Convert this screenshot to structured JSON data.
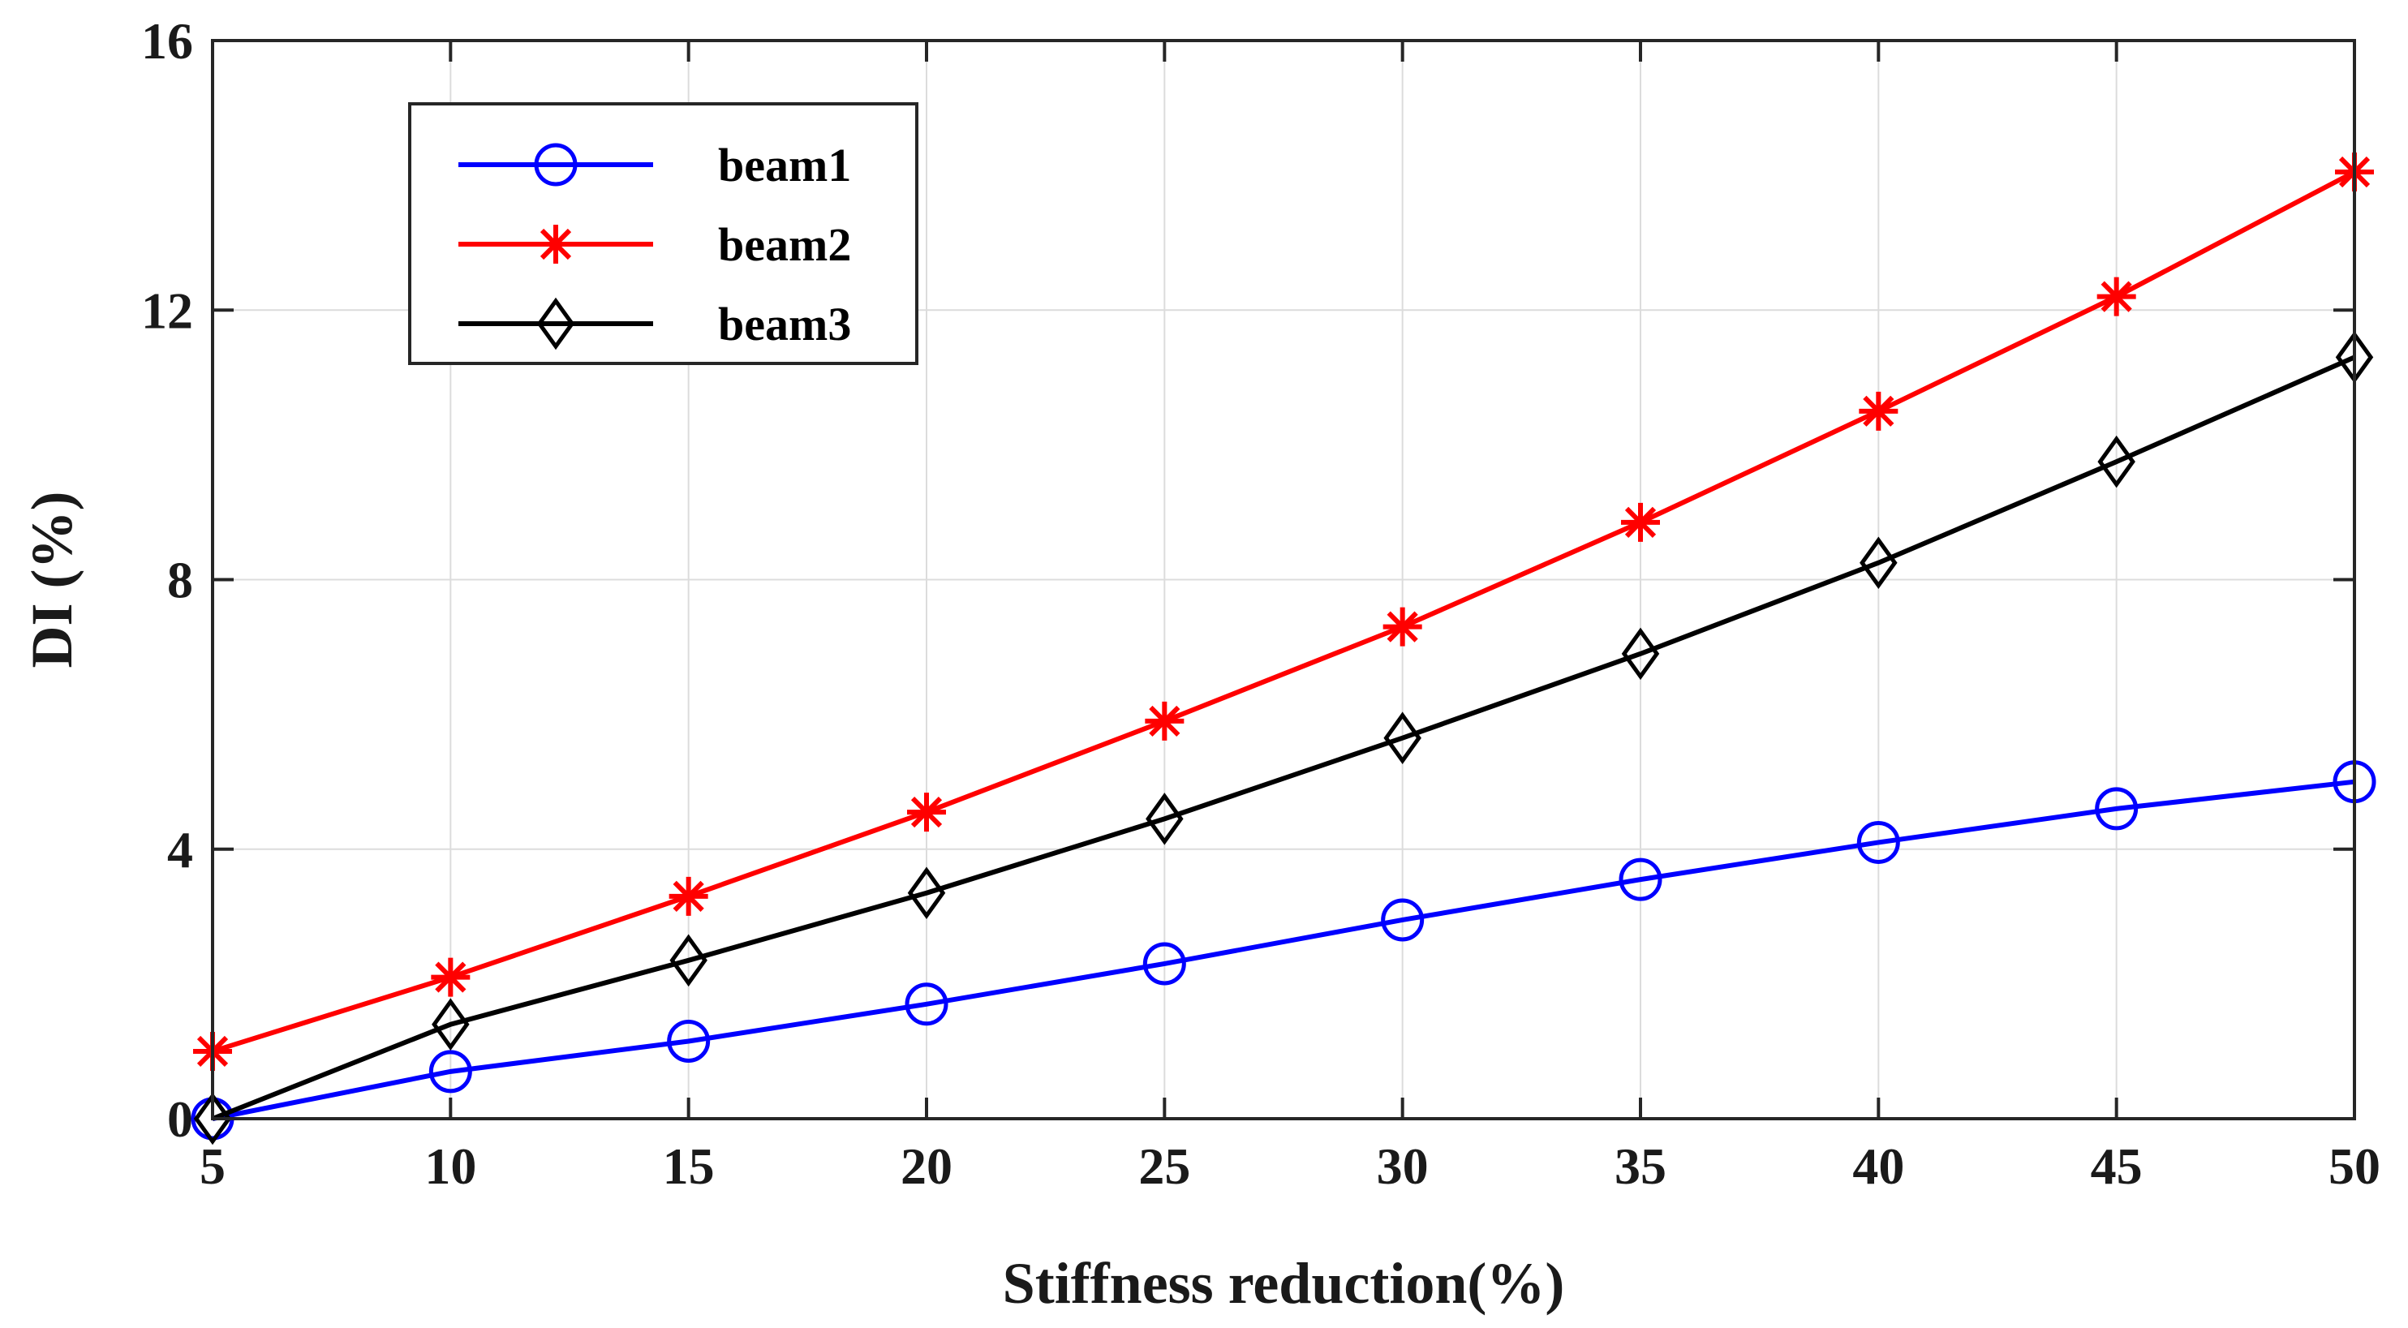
{
  "chart_data": {
    "type": "line",
    "title": "",
    "xlabel": "Stiffness reduction(%)",
    "ylabel": "DI (%)",
    "x": [
      5,
      10,
      15,
      20,
      25,
      30,
      35,
      40,
      45,
      50
    ],
    "xlim": [
      5,
      50
    ],
    "ylim": [
      0,
      16
    ],
    "xticks": [
      "5",
      "10",
      "15",
      "20",
      "25",
      "30",
      "35",
      "40",
      "45",
      "50"
    ],
    "yticks": [
      "0",
      "4",
      "8",
      "12",
      "16"
    ],
    "grid": true,
    "legend_position": "top-left",
    "series": [
      {
        "name": "beam1",
        "color": "#0000ff",
        "marker": "circle",
        "values": [
          0.0,
          0.7,
          1.15,
          1.7,
          2.3,
          2.95,
          3.55,
          4.1,
          4.6,
          5.0
        ]
      },
      {
        "name": "beam2",
        "color": "#ff0000",
        "marker": "asterisk",
        "values": [
          1.0,
          2.1,
          3.3,
          4.55,
          5.9,
          7.3,
          8.85,
          10.5,
          12.2,
          14.05
        ]
      },
      {
        "name": "beam3",
        "color": "#000000",
        "marker": "diamond",
        "values": [
          0.0,
          1.4,
          2.35,
          3.35,
          4.45,
          5.65,
          6.9,
          8.25,
          9.75,
          11.3
        ]
      }
    ]
  }
}
